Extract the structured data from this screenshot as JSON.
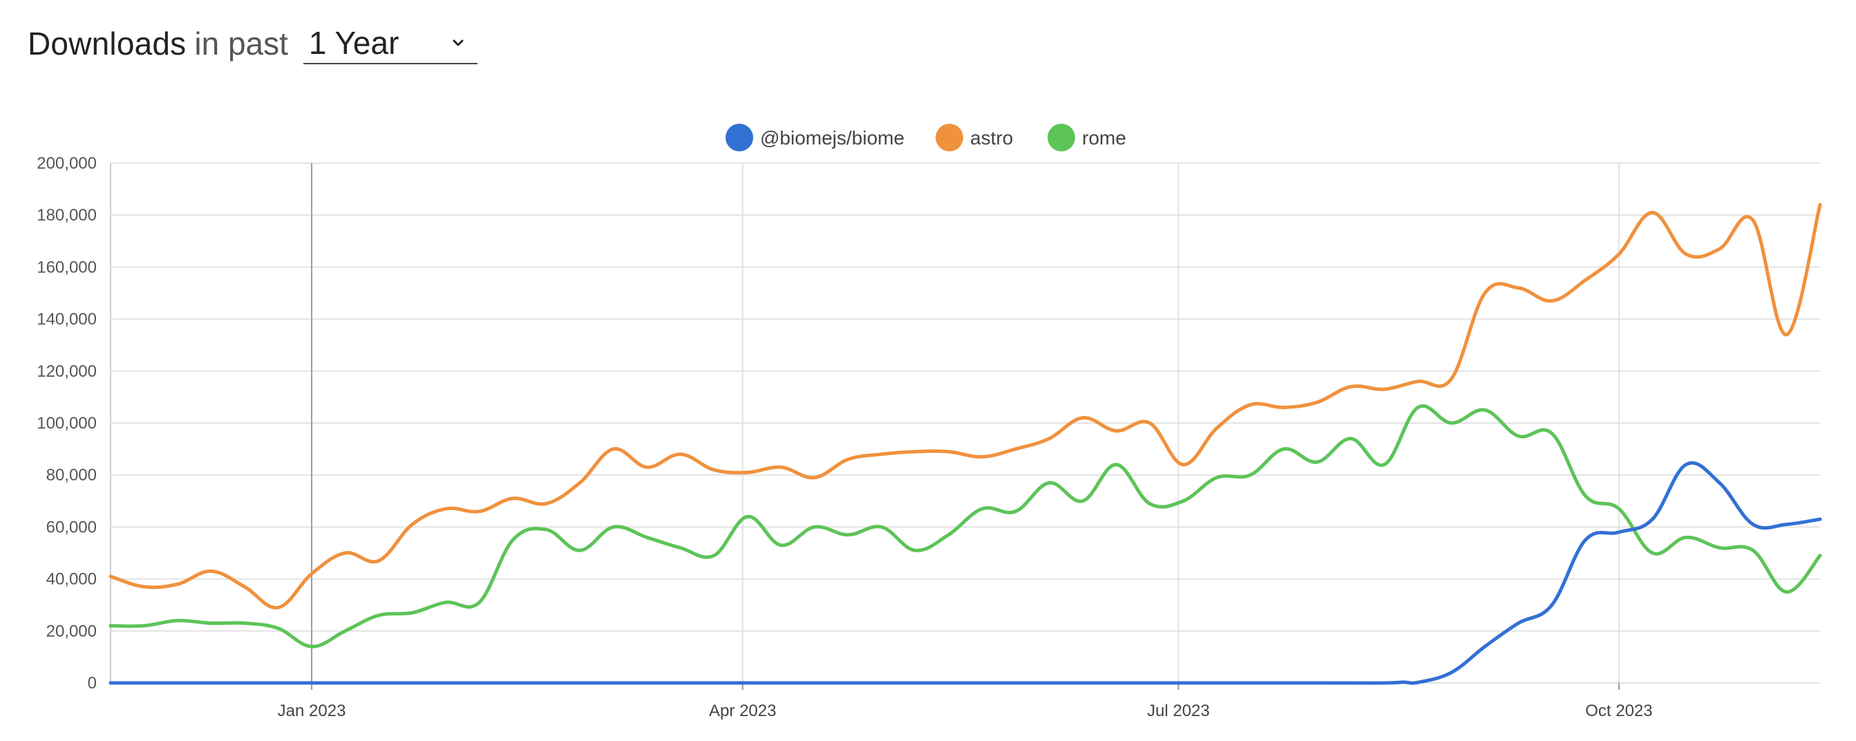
{
  "header": {
    "title_strong": "Downloads",
    "title_light": "in past",
    "period_value": "1 Year",
    "period_icon": "chevron-down-icon"
  },
  "chart_data": {
    "type": "line",
    "x_start": "2022-11-20",
    "x_end": "2023-11-12",
    "x_unit": "date",
    "ylim": [
      0,
      200000
    ],
    "yticks": [
      0,
      20000,
      40000,
      60000,
      80000,
      100000,
      120000,
      140000,
      160000,
      180000,
      200000
    ],
    "ytick_labels": [
      "0",
      "20,000",
      "40,000",
      "60,000",
      "80,000",
      "100,000",
      "120,000",
      "140,000",
      "160,000",
      "180,000",
      "200,000"
    ],
    "xticks": [
      "2023-01-01",
      "2023-04-01",
      "2023-07-01",
      "2023-10-01"
    ],
    "xtick_labels": [
      "Jan 2023",
      "Apr 2023",
      "Jul 2023",
      "Oct 2023"
    ],
    "grid": true,
    "legend_position": "top-center",
    "highlight_x": "2023-01-01",
    "series": [
      {
        "name": "@biomejs/biome",
        "color": "#3370d4",
        "points": [
          [
            "2022-11-20",
            0
          ],
          [
            "2023-02-12",
            0
          ],
          [
            "2023-05-07",
            0
          ],
          [
            "2023-07-30",
            0
          ],
          [
            "2023-08-13",
            0
          ],
          [
            "2023-08-17",
            300
          ],
          [
            "2023-08-20",
            200
          ],
          [
            "2023-08-27",
            4000
          ],
          [
            "2023-09-03",
            14000
          ],
          [
            "2023-09-10",
            23000
          ],
          [
            "2023-09-17",
            30000
          ],
          [
            "2023-09-24",
            55000
          ],
          [
            "2023-10-01",
            58000
          ],
          [
            "2023-10-08",
            63000
          ],
          [
            "2023-10-15",
            84000
          ],
          [
            "2023-10-22",
            77000
          ],
          [
            "2023-10-29",
            61000
          ],
          [
            "2023-11-05",
            61000
          ],
          [
            "2023-11-12",
            63000
          ]
        ]
      },
      {
        "name": "astro",
        "color": "#f0913d",
        "points": [
          [
            "2022-11-20",
            41000
          ],
          [
            "2022-11-27",
            37000
          ],
          [
            "2022-12-04",
            38000
          ],
          [
            "2022-12-11",
            43000
          ],
          [
            "2022-12-18",
            37000
          ],
          [
            "2022-12-25",
            29000
          ],
          [
            "2023-01-01",
            42000
          ],
          [
            "2023-01-08",
            50000
          ],
          [
            "2023-01-15",
            47000
          ],
          [
            "2023-01-22",
            61000
          ],
          [
            "2023-01-29",
            67000
          ],
          [
            "2023-02-05",
            66000
          ],
          [
            "2023-02-12",
            71000
          ],
          [
            "2023-02-19",
            69000
          ],
          [
            "2023-02-26",
            77000
          ],
          [
            "2023-03-05",
            90000
          ],
          [
            "2023-03-12",
            83000
          ],
          [
            "2023-03-19",
            88000
          ],
          [
            "2023-03-26",
            82000
          ],
          [
            "2023-04-02",
            81000
          ],
          [
            "2023-04-09",
            83000
          ],
          [
            "2023-04-16",
            79000
          ],
          [
            "2023-04-23",
            86000
          ],
          [
            "2023-04-30",
            88000
          ],
          [
            "2023-05-07",
            89000
          ],
          [
            "2023-05-14",
            89000
          ],
          [
            "2023-05-21",
            87000
          ],
          [
            "2023-05-28",
            90000
          ],
          [
            "2023-06-04",
            94000
          ],
          [
            "2023-06-11",
            102000
          ],
          [
            "2023-06-18",
            97000
          ],
          [
            "2023-06-25",
            100000
          ],
          [
            "2023-07-02",
            84000
          ],
          [
            "2023-07-09",
            98000
          ],
          [
            "2023-07-16",
            107000
          ],
          [
            "2023-07-23",
            106000
          ],
          [
            "2023-07-30",
            108000
          ],
          [
            "2023-08-06",
            114000
          ],
          [
            "2023-08-13",
            113000
          ],
          [
            "2023-08-20",
            116000
          ],
          [
            "2023-08-27",
            117000
          ],
          [
            "2023-09-03",
            150000
          ],
          [
            "2023-09-10",
            152000
          ],
          [
            "2023-09-17",
            147000
          ],
          [
            "2023-09-24",
            155000
          ],
          [
            "2023-10-01",
            165000
          ],
          [
            "2023-10-08",
            181000
          ],
          [
            "2023-10-15",
            165000
          ],
          [
            "2023-10-22",
            167000
          ],
          [
            "2023-10-29",
            178000
          ],
          [
            "2023-11-05",
            134000
          ],
          [
            "2023-11-12",
            184000
          ]
        ]
      },
      {
        "name": "rome",
        "color": "#5cc458",
        "points": [
          [
            "2022-11-20",
            22000
          ],
          [
            "2022-11-27",
            22000
          ],
          [
            "2022-12-04",
            24000
          ],
          [
            "2022-12-11",
            23000
          ],
          [
            "2022-12-18",
            23000
          ],
          [
            "2022-12-25",
            21000
          ],
          [
            "2023-01-01",
            14000
          ],
          [
            "2023-01-08",
            20000
          ],
          [
            "2023-01-15",
            26000
          ],
          [
            "2023-01-22",
            27000
          ],
          [
            "2023-01-29",
            31000
          ],
          [
            "2023-02-05",
            31000
          ],
          [
            "2023-02-12",
            55000
          ],
          [
            "2023-02-19",
            59000
          ],
          [
            "2023-02-26",
            51000
          ],
          [
            "2023-03-05",
            60000
          ],
          [
            "2023-03-12",
            56000
          ],
          [
            "2023-03-19",
            52000
          ],
          [
            "2023-03-26",
            49000
          ],
          [
            "2023-04-02",
            64000
          ],
          [
            "2023-04-09",
            53000
          ],
          [
            "2023-04-16",
            60000
          ],
          [
            "2023-04-23",
            57000
          ],
          [
            "2023-04-30",
            60000
          ],
          [
            "2023-05-07",
            51000
          ],
          [
            "2023-05-14",
            57000
          ],
          [
            "2023-05-21",
            67000
          ],
          [
            "2023-05-28",
            66000
          ],
          [
            "2023-06-04",
            77000
          ],
          [
            "2023-06-11",
            70000
          ],
          [
            "2023-06-18",
            84000
          ],
          [
            "2023-06-25",
            69000
          ],
          [
            "2023-07-02",
            70000
          ],
          [
            "2023-07-09",
            79000
          ],
          [
            "2023-07-16",
            80000
          ],
          [
            "2023-07-23",
            90000
          ],
          [
            "2023-07-30",
            85000
          ],
          [
            "2023-08-06",
            94000
          ],
          [
            "2023-08-13",
            84000
          ],
          [
            "2023-08-20",
            106000
          ],
          [
            "2023-08-27",
            100000
          ],
          [
            "2023-09-03",
            105000
          ],
          [
            "2023-09-10",
            95000
          ],
          [
            "2023-09-17",
            96000
          ],
          [
            "2023-09-24",
            72000
          ],
          [
            "2023-10-01",
            67000
          ],
          [
            "2023-10-08",
            50000
          ],
          [
            "2023-10-15",
            56000
          ],
          [
            "2023-10-22",
            52000
          ],
          [
            "2023-10-29",
            51000
          ],
          [
            "2023-11-05",
            35000
          ],
          [
            "2023-11-12",
            49000
          ]
        ]
      }
    ]
  }
}
